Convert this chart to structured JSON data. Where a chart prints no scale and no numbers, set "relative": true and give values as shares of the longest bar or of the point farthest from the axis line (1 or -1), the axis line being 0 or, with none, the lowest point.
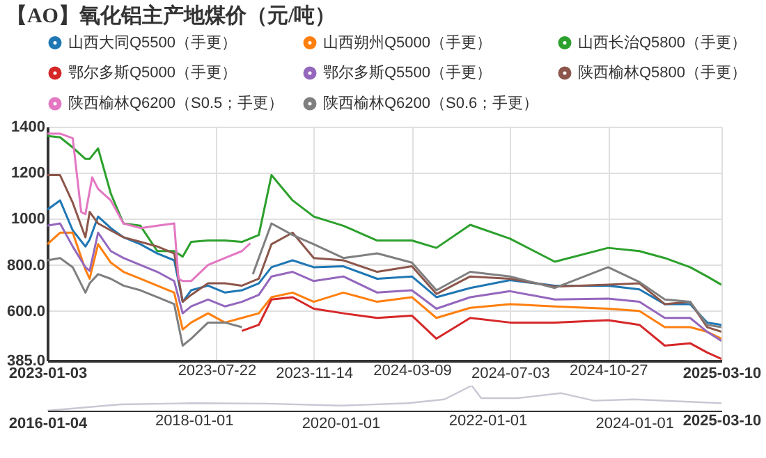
{
  "chart_data": [
    {
      "type": "line",
      "title": "【AO】氧化铝主产地煤价（元/吨）",
      "legend": "top",
      "grid": true,
      "x": [
        "2023-01-03",
        "2023-01-18",
        "2023-02-02",
        "2023-02-17",
        "2023-02-22",
        "2023-03-04",
        "2023-03-19",
        "2023-04-03",
        "2023-04-23",
        "2023-05-13",
        "2023-06-02",
        "2023-06-12",
        "2023-06-22",
        "2023-07-12",
        "2023-08-01",
        "2023-08-21",
        "2023-09-10",
        "2023-09-25",
        "2023-10-20",
        "2023-11-14",
        "2023-12-19",
        "2024-01-28",
        "2024-03-09",
        "2024-04-07",
        "2024-05-17",
        "2024-07-03",
        "2024-08-25",
        "2024-10-27",
        "2024-12-03",
        "2025-01-02",
        "2025-02-01",
        "2025-02-21",
        "2025-03-10"
      ],
      "xlim": [
        "2023-01-03",
        "2025-03-10"
      ],
      "xticks": [
        "2023-01-03",
        "2023-07-22",
        "2023-11-14",
        "2024-03-09",
        "2024-07-03",
        "2024-10-27",
        "2025-03-10"
      ],
      "ylim": [
        385,
        1400
      ],
      "yticks": [
        {
          "value": 385,
          "label": "385.0"
        },
        {
          "value": 600,
          "label": "600.0"
        },
        {
          "value": 800,
          "label": "800.0"
        },
        1000,
        1200,
        1400
      ],
      "series": [
        {
          "name": "山西大同Q5500（手更）",
          "color": "#1f77b4",
          "values": [
            1040,
            1080,
            950,
            880,
            910,
            1010,
            960,
            920,
            890,
            850,
            820,
            640,
            690,
            710,
            680,
            690,
            720,
            790,
            820,
            790,
            794,
            740,
            750,
            660,
            700,
            734,
            710,
            710,
            694,
            630,
            630,
            550,
            540
          ]
        },
        {
          "name": "山西朔州Q5000（手更）",
          "color": "#ff7f0e",
          "values": [
            890,
            940,
            940,
            780,
            740,
            890,
            810,
            770,
            740,
            710,
            680,
            520,
            550,
            590,
            550,
            570,
            590,
            660,
            680,
            640,
            680,
            640,
            660,
            570,
            614,
            630,
            620,
            610,
            600,
            530,
            530,
            510,
            480
          ]
        },
        {
          "name": "山西长治Q5800（手更）",
          "color": "#2ca02c",
          "values": [
            1360,
            1354,
            1310,
            1260,
            1260,
            1306,
            1110,
            980,
            970,
            860,
            860,
            836,
            900,
            906,
            906,
            900,
            930,
            1190,
            1080,
            1010,
            970,
            906,
            906,
            874,
            974,
            914,
            814,
            874,
            860,
            830,
            790,
            750,
            714
          ]
        },
        {
          "name": "鄂尔多斯Q5000（手更）",
          "color": "#d62728",
          "x": [
            "2023-08-21",
            "2023-09-10",
            "2023-09-25",
            "2023-10-20",
            "2023-11-14",
            "2023-12-19",
            "2024-01-28",
            "2024-03-09",
            "2024-04-07",
            "2024-05-17",
            "2024-07-03",
            "2024-08-25",
            "2024-10-27",
            "2024-12-03",
            "2025-01-02",
            "2025-02-01",
            "2025-02-21",
            "2025-03-10"
          ],
          "values": [
            514,
            540,
            650,
            660,
            610,
            590,
            570,
            580,
            480,
            570,
            550,
            550,
            560,
            540,
            450,
            460,
            420,
            392
          ]
        },
        {
          "name": "鄂尔多斯Q5500（手更）",
          "color": "#9467bd",
          "values": [
            970,
            980,
            880,
            790,
            774,
            940,
            860,
            830,
            800,
            770,
            730,
            590,
            620,
            650,
            620,
            640,
            670,
            750,
            770,
            730,
            750,
            680,
            690,
            610,
            660,
            686,
            650,
            654,
            640,
            570,
            570,
            510,
            470
          ]
        },
        {
          "name": "陕西榆林Q5800（手更）",
          "color": "#8c564b",
          "values": [
            1190,
            1190,
            1070,
            920,
            1030,
            980,
            950,
            920,
            900,
            880,
            850,
            640,
            670,
            720,
            720,
            710,
            740,
            890,
            940,
            830,
            820,
            770,
            794,
            674,
            750,
            740,
            706,
            714,
            720,
            630,
            640,
            530,
            510
          ]
        },
        {
          "name": "陕西榆林Q6200（S0.5；手更）",
          "color": "#e377c2",
          "x": [
            "2023-01-03",
            "2023-01-18",
            "2023-02-02",
            "2023-02-12",
            "2023-02-17",
            "2023-02-25",
            "2023-03-04",
            "2023-03-19",
            "2023-04-03",
            "2023-04-23",
            "2023-05-13",
            "2023-06-02",
            "2023-06-07",
            "2023-06-12",
            "2023-06-22",
            "2023-07-12",
            "2023-08-01",
            "2023-08-21",
            "2023-08-31"
          ],
          "values": [
            1370,
            1370,
            1350,
            1030,
            1020,
            1180,
            1130,
            1080,
            980,
            960,
            970,
            980,
            740,
            730,
            730,
            800,
            830,
            860,
            894
          ]
        },
        {
          "name": "陕西榆林Q6200（S0.6；手更）",
          "color": "#7f7f7f",
          "x": [
            "2023-01-03",
            "2023-01-18",
            "2023-02-02",
            "2023-02-17",
            "2023-02-22",
            "2023-03-04",
            "2023-03-19",
            "2023-04-03",
            "2023-04-23",
            "2023-05-13",
            "2023-06-02",
            "2023-06-12",
            "2023-06-22",
            "2023-07-12",
            "2023-08-01",
            "2023-08-21",
            "2023-09-01",
            "2023-09-03",
            "2023-09-25",
            "2023-10-20",
            "2023-11-14",
            "2023-12-19",
            "2024-01-28",
            "2024-03-09",
            "2024-04-07",
            "2024-05-17",
            "2024-07-03",
            "2024-08-25",
            "2024-10-27",
            "2024-12-03",
            "2025-01-02",
            "2025-02-01",
            "2025-02-21",
            "2025-03-10"
          ],
          "values": [
            820,
            830,
            790,
            680,
            720,
            760,
            740,
            710,
            690,
            660,
            630,
            450,
            480,
            550,
            550,
            530,
            null,
            760,
            980,
            930,
            890,
            830,
            850,
            810,
            690,
            770,
            750,
            700,
            790,
            726,
            650,
            640,
            540,
            530
          ]
        }
      ]
    },
    {
      "type": "line",
      "relative": true,
      "tick_labels": "x",
      "x": [
        "2016-01-04",
        "2017-01-01",
        "2018-01-01",
        "2019-01-01",
        "2020-01-01",
        "2020-12-01",
        "2021-06-01",
        "2021-10-15",
        "2021-12-01",
        "2022-06-01",
        "2023-01-03",
        "2023-06-15",
        "2024-01-01",
        "2025-03-10"
      ],
      "xlim": [
        "2016-01-04",
        "2025-03-10"
      ],
      "xticks": [
        "2016-01-04",
        "2018-01-01",
        "2020-01-01",
        "2022-01-01",
        "2024-01-01",
        "2025-03-10"
      ],
      "series": [
        {
          "color": "#c8c8d4",
          "values": [
            0,
            0.25,
            0.3,
            0.28,
            0.2,
            0.3,
            0.45,
            1,
            0.5,
            0.5,
            0.7,
            0.4,
            0.45,
            0.3
          ]
        }
      ]
    }
  ]
}
